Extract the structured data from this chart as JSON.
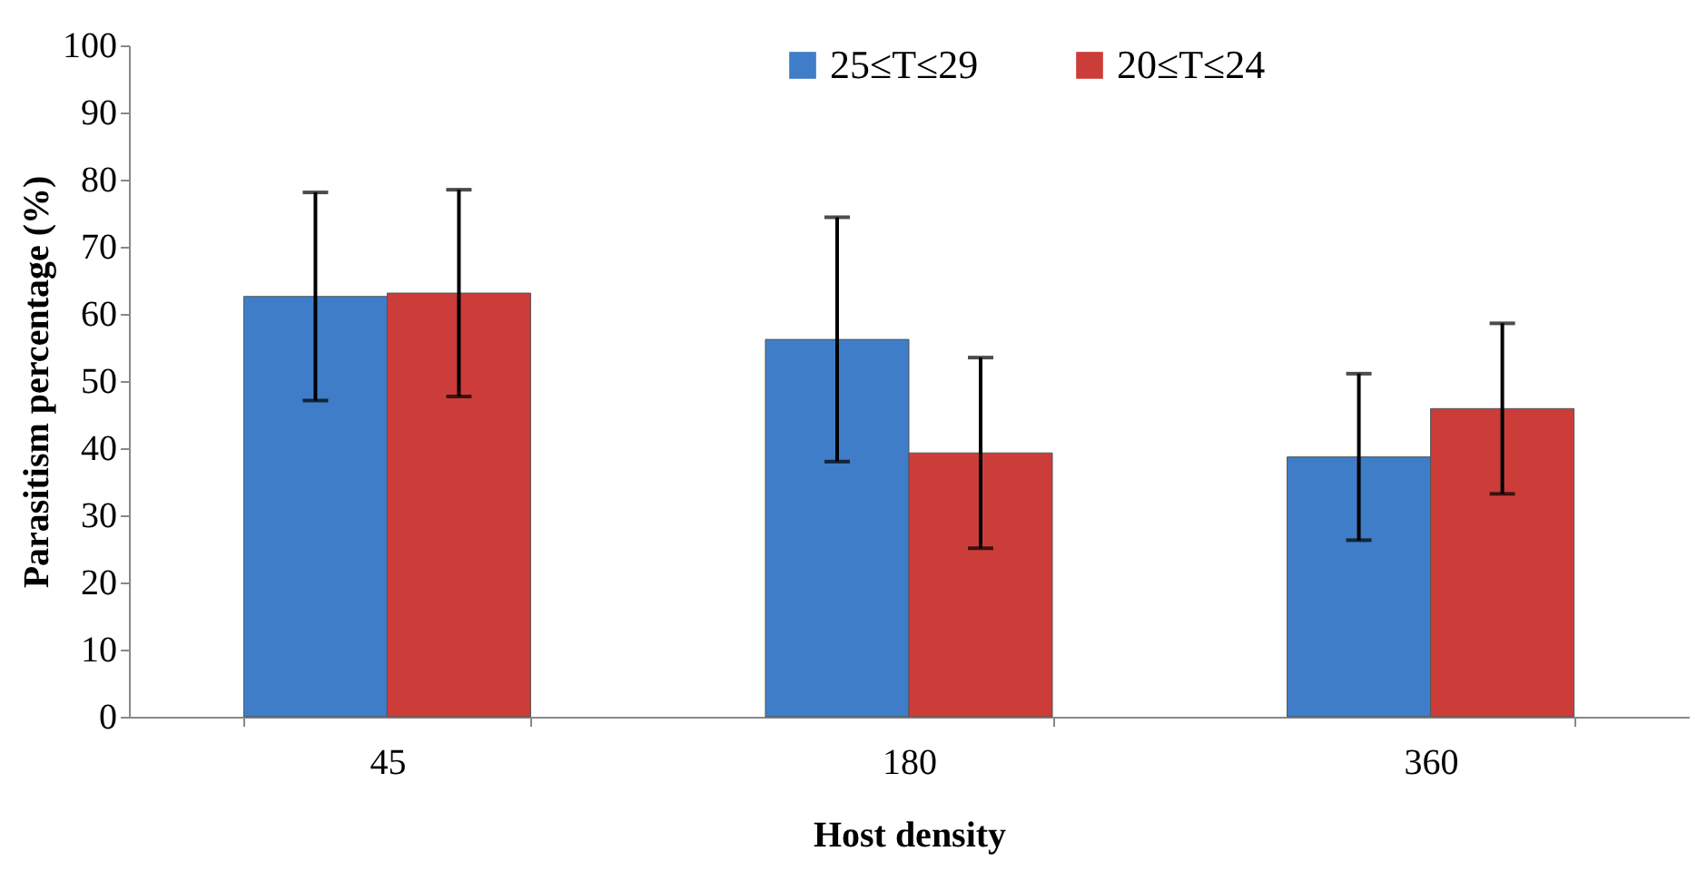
{
  "chart_data": {
    "type": "bar",
    "xlabel": "Host density",
    "ylabel": "Parasitism percentage (%)",
    "categories": [
      "45",
      "180",
      "360"
    ],
    "series": [
      {
        "name": "25≤T≤29",
        "color": "#3f7dc8",
        "values": [
          62.6,
          56.2,
          38.7
        ],
        "errors": [
          15.5,
          18.2,
          12.4
        ]
      },
      {
        "name": "20≤T≤24",
        "color": "#cc3d3a",
        "values": [
          63.1,
          39.3,
          45.9
        ],
        "errors": [
          15.4,
          14.2,
          12.7
        ]
      }
    ],
    "ylim": [
      0,
      100
    ],
    "yticks": [
      0,
      10,
      20,
      30,
      40,
      50,
      60,
      70,
      80,
      90,
      100
    ],
    "grid": false,
    "legend": "top"
  }
}
